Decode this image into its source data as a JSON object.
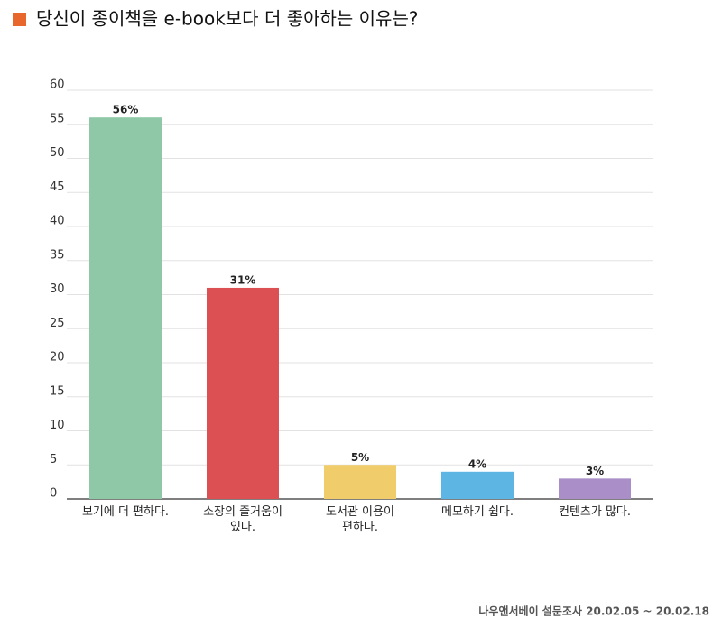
{
  "chart_data": {
    "type": "bar",
    "title": "당신이 종이책을 e-book보다 더 좋아하는 이유는?",
    "categories": [
      "보기에 더 편하다.",
      "소장의 즐거움이 있다.",
      "도서관 이용이 편하다.",
      "메모하기 쉽다.",
      "컨텐츠가 많다."
    ],
    "values": [
      56,
      31,
      5,
      4,
      3
    ],
    "value_labels": [
      "56%",
      "31%",
      "5%",
      "4%",
      "3%"
    ],
    "colors": [
      "#8fc8a7",
      "#dc5054",
      "#f1cc6b",
      "#5db5e4",
      "#a98ec8"
    ],
    "ylim": [
      0,
      60
    ],
    "yticks": [
      0,
      5,
      10,
      15,
      20,
      25,
      30,
      35,
      40,
      45,
      50,
      55,
      60
    ],
    "grid": true,
    "source": "나우앤서베이 설문조사 20.02.05 ~ 20.02.18"
  }
}
